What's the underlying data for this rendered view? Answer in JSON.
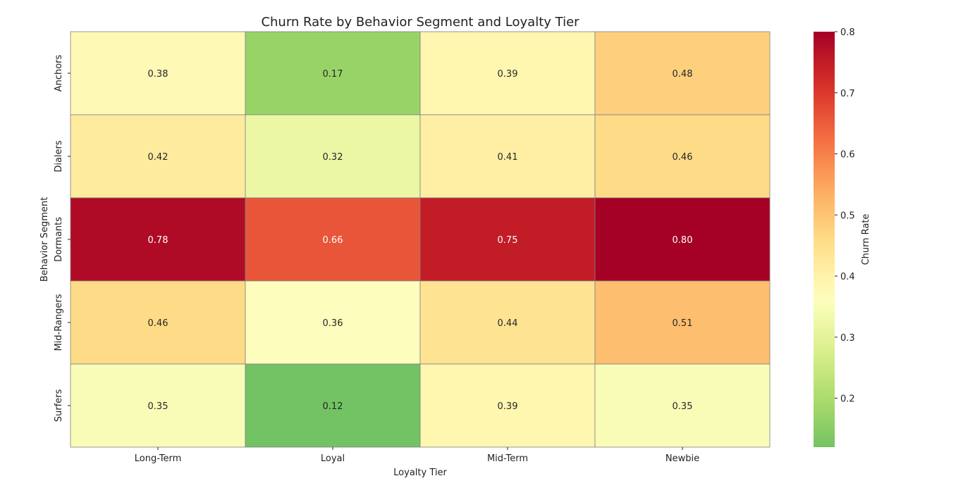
{
  "chart_data": {
    "type": "heatmap",
    "title": "Churn Rate by Behavior Segment and Loyalty Tier",
    "xlabel": "Loyalty Tier",
    "ylabel": "Behavior Segment",
    "x_categories": [
      "Long-Term",
      "Loyal",
      "Mid-Term",
      "Newbie"
    ],
    "y_categories": [
      "Anchors",
      "Dialers",
      "Dormants",
      "Mid-Rangers",
      "Surfers"
    ],
    "values": [
      [
        0.38,
        0.17,
        0.39,
        0.48
      ],
      [
        0.42,
        0.32,
        0.41,
        0.46
      ],
      [
        0.78,
        0.66,
        0.75,
        0.8
      ],
      [
        0.46,
        0.36,
        0.44,
        0.51
      ],
      [
        0.35,
        0.12,
        0.39,
        0.35
      ]
    ],
    "value_format": "0.00",
    "colormap": "RdYlGn_r",
    "vmin": 0.12,
    "vmax": 0.8,
    "cell_border_color": "#808080",
    "colorbar": {
      "label": "Churn Rate",
      "ticks": [
        0.2,
        0.3,
        0.4,
        0.5,
        0.6,
        0.7,
        0.8
      ],
      "tick_labels": [
        "0.2",
        "0.3",
        "0.4",
        "0.5",
        "0.6",
        "0.7",
        "0.8"
      ]
    },
    "grid": false,
    "legend": "colorbar-right"
  }
}
